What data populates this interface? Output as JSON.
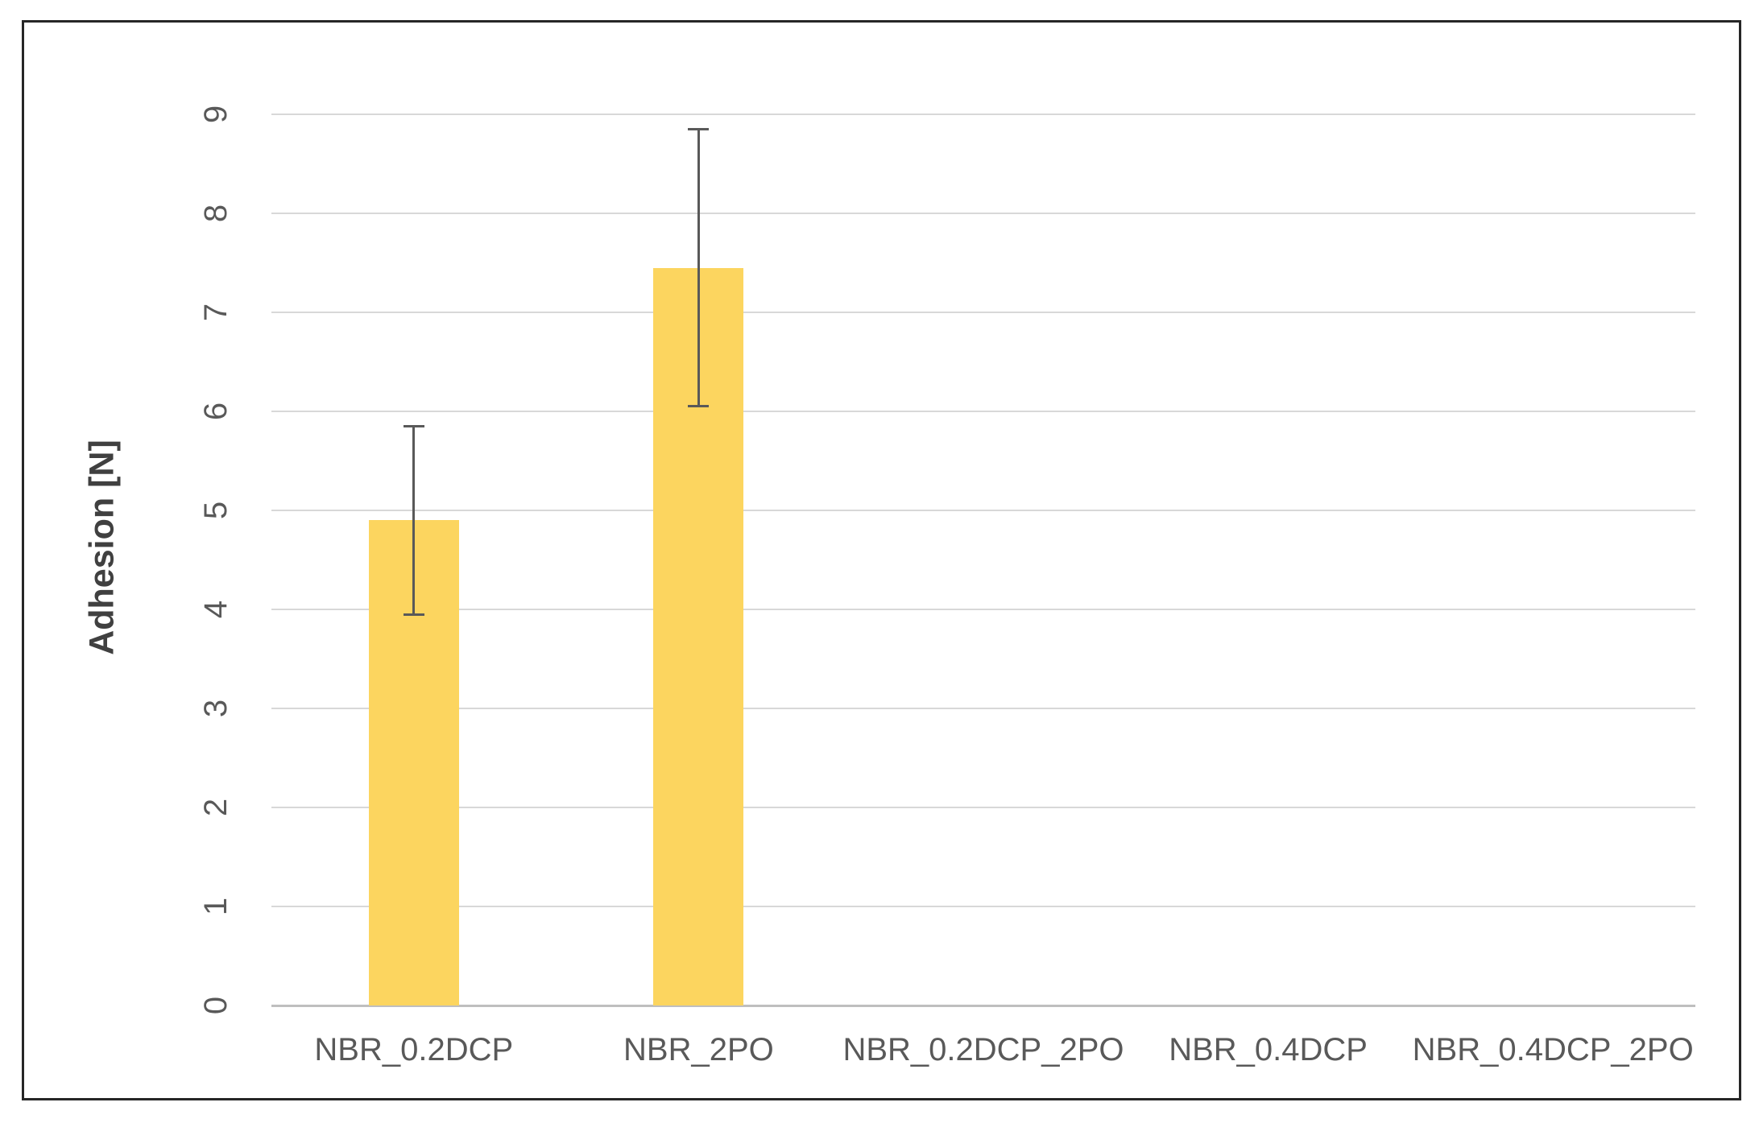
{
  "chart_data": {
    "type": "bar",
    "title": "",
    "categories": [
      "NBR_0.2DCP",
      "NBR_2PO",
      "NBR_0.2DCP_2PO",
      "NBR_0.4DCP",
      "NBR_0.4DCP_2PO"
    ],
    "values": [
      4.9,
      7.45,
      0,
      0,
      0
    ],
    "error_bars": [
      0.95,
      1.4,
      0,
      0,
      0
    ],
    "xlabel": "",
    "ylabel": "Adhesion [N]",
    "ylim": [
      0,
      9
    ],
    "ytick_labels": [
      "0",
      "1",
      "2",
      "3",
      "4",
      "5",
      "6",
      "7",
      "8",
      "9"
    ],
    "ytick_rotation_deg": 90,
    "grid": true,
    "legend_position": "none",
    "colors": {
      "bar_fill": "#FCD55F",
      "error_bar": "#595959",
      "gridline": "#D8D8D8",
      "axis_line": "#BFBFBF",
      "tick_text": "#595959",
      "axis_title_text": "#404040",
      "frame_border": "#262626",
      "background": "#FFFFFF"
    }
  }
}
